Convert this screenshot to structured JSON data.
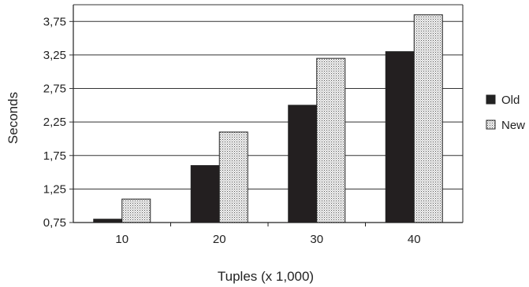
{
  "chart_data": {
    "type": "bar",
    "categories": [
      "10",
      "20",
      "30",
      "40"
    ],
    "series": [
      {
        "name": "Old",
        "values": [
          0.8,
          1.6,
          2.5,
          3.3
        ],
        "color": "#222222",
        "pattern": "solid"
      },
      {
        "name": "New",
        "values": [
          1.1,
          2.1,
          3.2,
          3.85
        ],
        "color": "#e8e8e8",
        "pattern": "dotted"
      }
    ],
    "xlabel": "Tuples (x 1,000)",
    "ylabel": "Seconds",
    "ylim": [
      0.75,
      4.0
    ],
    "yticks": [
      "0,75",
      "1,25",
      "1,75",
      "2,25",
      "2,75",
      "3,25",
      "3,75"
    ],
    "ytick_values": [
      0.75,
      1.25,
      1.75,
      2.25,
      2.75,
      3.25,
      3.75
    ],
    "grid": true,
    "legend_position": "right"
  }
}
